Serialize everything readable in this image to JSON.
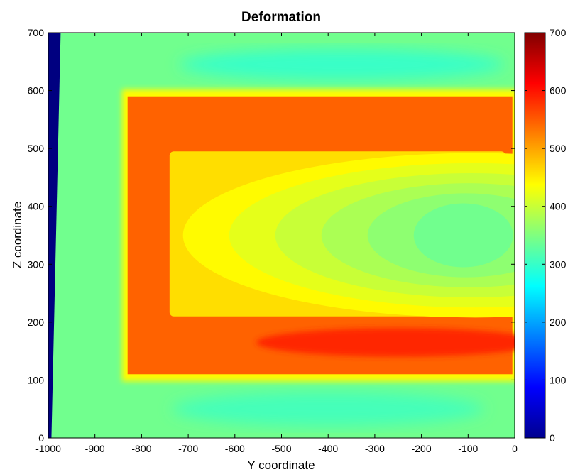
{
  "chart_data": {
    "type": "heatmap",
    "title": "Deformation",
    "xlabel": "Y coordinate",
    "ylabel": "Z coordinate",
    "xlim": [
      -1000,
      0
    ],
    "ylim": [
      0,
      700
    ],
    "x_ticks": [
      "-1000",
      "-900",
      "-800",
      "-700",
      "-600",
      "-500",
      "-400",
      "-300",
      "-200",
      "-100",
      "0"
    ],
    "y_ticks": [
      "0",
      "100",
      "200",
      "300",
      "400",
      "500",
      "600",
      "700"
    ],
    "colorbar": {
      "colormap": "jet",
      "range": [
        0,
        700
      ],
      "ticks": [
        "0",
        "100",
        "200",
        "300",
        "400",
        "500",
        "600",
        "700"
      ]
    },
    "grid": false,
    "legend": "none",
    "regions": [
      {
        "name": "left-edge-band",
        "value": 0,
        "x": [
          -1000,
          -975
        ],
        "y": [
          0,
          700
        ]
      },
      {
        "name": "outer-background",
        "value": 340
      },
      {
        "name": "upper-outer-zone",
        "value": 300,
        "center": [
          -370,
          645
        ]
      },
      {
        "name": "lower-outer-zone",
        "value": 310,
        "center": [
          -400,
          50
        ]
      },
      {
        "name": "u-shaped-band",
        "value": 545,
        "x": [
          -830,
          -5
        ],
        "y": [
          110,
          590
        ]
      },
      {
        "name": "lower-band-peak",
        "value": 585,
        "center": [
          -250,
          165
        ]
      },
      {
        "name": "inner-gradient",
        "value": 460,
        "x": [
          -740,
          -20
        ],
        "y": [
          210,
          495
        ]
      },
      {
        "name": "inner-core",
        "value": 340,
        "center": [
          -110,
          350
        ]
      }
    ]
  }
}
